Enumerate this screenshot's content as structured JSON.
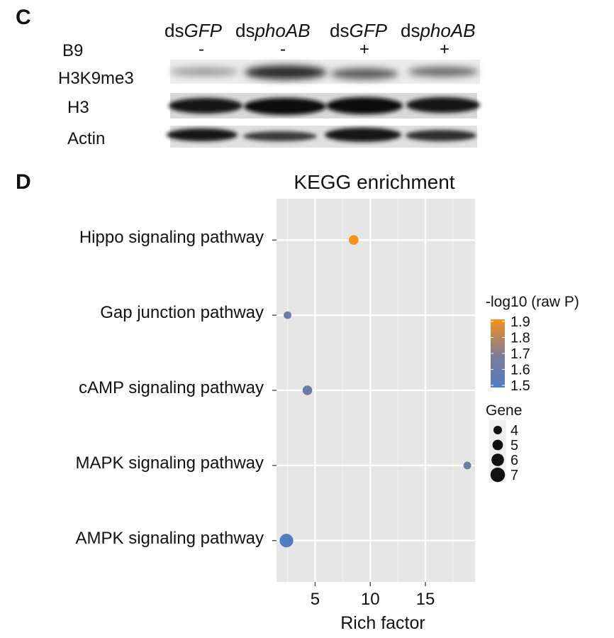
{
  "panel_c": {
    "letter": "C",
    "lanes": [
      {
        "prefix": "ds",
        "gene": "GFP",
        "b9": "-"
      },
      {
        "prefix": "ds",
        "gene": "phoAB",
        "b9": "-"
      },
      {
        "prefix": "ds",
        "gene": "GFP",
        "b9": "+"
      },
      {
        "prefix": "ds",
        "gene": "phoAB",
        "b9": "+"
      }
    ],
    "treatment_label": "B9",
    "blots": [
      {
        "label": "H3K9me3"
      },
      {
        "label": "H3"
      },
      {
        "label": "Actin"
      }
    ]
  },
  "panel_d": {
    "letter": "D"
  },
  "chart_data": {
    "type": "scatter",
    "title": "KEGG enrichment",
    "xlabel": "Rich factor",
    "ylabel": "",
    "xlim": [
      1.5,
      19.5
    ],
    "xticks": [
      5,
      10,
      15
    ],
    "grid": true,
    "background": "#e6e6e6",
    "categories": [
      "Hippo signaling pathway",
      "Gap junction pathway",
      "cAMP signaling pathway",
      "MAPK signaling pathway",
      "AMPK signaling pathway"
    ],
    "points": [
      {
        "category": "Hippo signaling pathway",
        "x": 8.5,
        "neg_log10_p": 1.9,
        "gene": 5
      },
      {
        "category": "Gap junction pathway",
        "x": 2.5,
        "neg_log10_p": 1.6,
        "gene": 4
      },
      {
        "category": "cAMP signaling pathway",
        "x": 4.3,
        "neg_log10_p": 1.6,
        "gene": 5
      },
      {
        "category": "MAPK signaling pathway",
        "x": 18.8,
        "neg_log10_p": 1.6,
        "gene": 4
      },
      {
        "category": "AMPK signaling pathway",
        "x": 2.4,
        "neg_log10_p": 1.5,
        "gene": 7
      }
    ],
    "color_legend": {
      "title": "-log10 (raw P)",
      "ticks": [
        1.9,
        1.8,
        1.7,
        1.6,
        1.5
      ],
      "low_color": "#4f7ec0",
      "mid_color": "#7b7b9b",
      "high_color": "#f5921e",
      "range": [
        1.5,
        1.9
      ]
    },
    "size_legend": {
      "title": "Gene",
      "values": [
        4,
        5,
        6,
        7
      ]
    },
    "legend_position": "right"
  }
}
